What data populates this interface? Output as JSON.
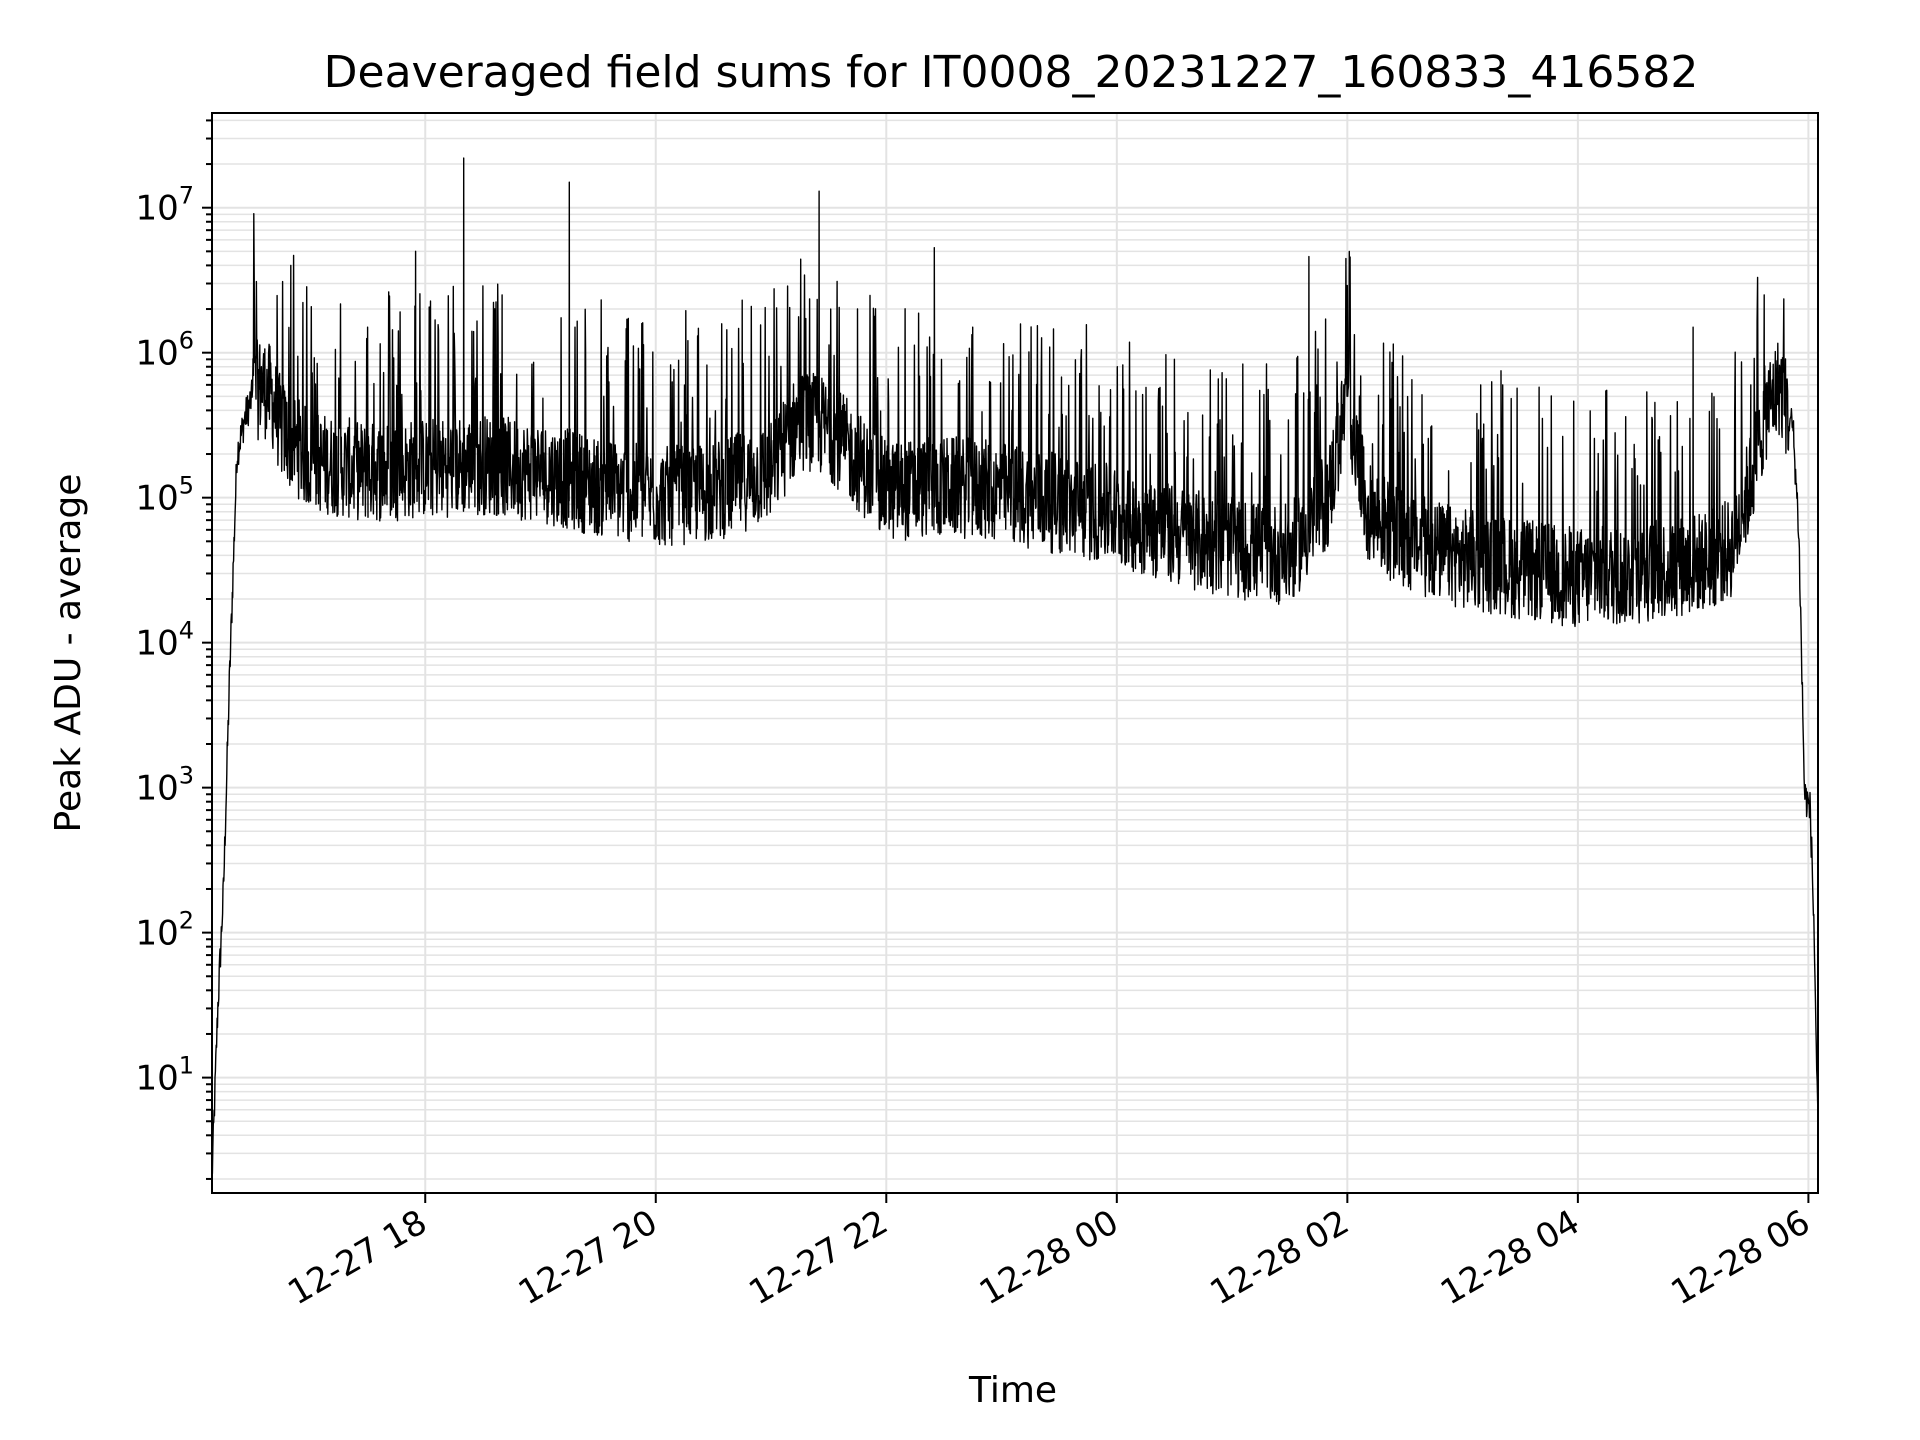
{
  "chart_data": {
    "type": "line",
    "title": "Deaveraged field sums for IT0008_20231227_160833_416582",
    "xlabel": "Time",
    "ylabel": "Peak ADU - average",
    "y_scale": "log",
    "ylim": [
      1.6,
      45000000
    ],
    "xlim": [
      "12-27 16:09",
      "12-28 06:05"
    ],
    "grid": true,
    "line_color": "#000000",
    "x_tick_labels": [
      "12-27 18",
      "12-27 20",
      "12-27 22",
      "12-28 00",
      "12-28 02",
      "12-28 04",
      "12-28 06"
    ],
    "x_tick_values": [
      "12-27 18:00",
      "12-27 20:00",
      "12-27 22:00",
      "12-28 00:00",
      "12-28 02:00",
      "12-28 04:00",
      "12-28 06:00"
    ],
    "y_ticks": [
      {
        "value": 10,
        "base": "10",
        "exp": "1"
      },
      {
        "value": 100,
        "base": "10",
        "exp": "2"
      },
      {
        "value": 1000,
        "base": "10",
        "exp": "3"
      },
      {
        "value": 10000,
        "base": "10",
        "exp": "4"
      },
      {
        "value": 100000,
        "base": "10",
        "exp": "5"
      },
      {
        "value": 1000000,
        "base": "10",
        "exp": "6"
      },
      {
        "value": 10000000,
        "base": "10",
        "exp": "7"
      }
    ],
    "series": [
      {
        "baseline": {
          "x": [
            "12-27 16:09",
            "12-27 16:12",
            "12-27 16:15",
            "12-27 16:18",
            "12-27 16:22",
            "12-27 16:26",
            "12-27 16:30",
            "12-27 16:35",
            "12-27 16:40",
            "12-27 16:45",
            "12-27 16:50",
            "12-27 17:00",
            "12-27 17:30",
            "12-27 18:00",
            "12-27 18:30",
            "12-27 19:00",
            "12-27 19:30",
            "12-27 20:00",
            "12-27 20:30",
            "12-27 21:00",
            "12-27 21:15",
            "12-27 21:30",
            "12-27 21:45",
            "12-27 22:00",
            "12-27 22:30",
            "12-27 23:00",
            "12-27 23:30",
            "12-28 00:00",
            "12-28 00:30",
            "12-28 01:00",
            "12-28 01:30",
            "12-28 01:50",
            "12-28 02:00",
            "12-28 02:10",
            "12-28 02:30",
            "12-28 03:00",
            "12-28 03:30",
            "12-28 04:00",
            "12-28 04:30",
            "12-28 05:00",
            "12-28 05:10",
            "12-28 05:20",
            "12-28 05:30",
            "12-28 05:38",
            "12-28 05:45",
            "12-28 05:52",
            "12-28 05:55",
            "12-28 05:58",
            "12-28 06:01",
            "12-28 06:03",
            "12-28 06:05"
          ],
          "y": [
            2,
            30,
            200,
            5000,
            200000,
            350000,
            500000,
            600000,
            500000,
            300000,
            250000,
            180000,
            150000,
            160000,
            170000,
            150000,
            120000,
            100000,
            110000,
            150000,
            350000,
            300000,
            180000,
            110000,
            120000,
            110000,
            90000,
            75000,
            55000,
            45000,
            40000,
            100000,
            500000,
            80000,
            50000,
            38000,
            32000,
            28000,
            30000,
            35000,
            38000,
            45000,
            130000,
            400000,
            600000,
            300000,
            60000,
            900,
            700,
            100,
            4
          ]
        },
        "spikes": {
          "x": [
            "12-27 16:50",
            "12-27 17:30",
            "12-27 17:55",
            "12-27 18:20",
            "12-27 18:40",
            "12-27 19:15",
            "12-27 19:45",
            "12-27 20:45",
            "12-27 21:25",
            "12-27 21:45",
            "12-27 22:25",
            "12-27 22:45",
            "12-28 00:30",
            "12-28 01:40",
            "12-28 02:00",
            "12-28 03:20",
            "12-28 04:15",
            "12-28 05:00",
            "12-28 05:30",
            "12-28 05:37"
          ],
          "y": [
            4000000,
            1500000,
            5000000,
            22000000,
            2500000,
            15000000,
            1700000,
            2300000,
            13000000,
            2000000,
            5300000,
            1500000,
            900000,
            4600000,
            2900000,
            750000,
            550000,
            1500000,
            600000,
            2500000
          ]
        }
      }
    ]
  }
}
